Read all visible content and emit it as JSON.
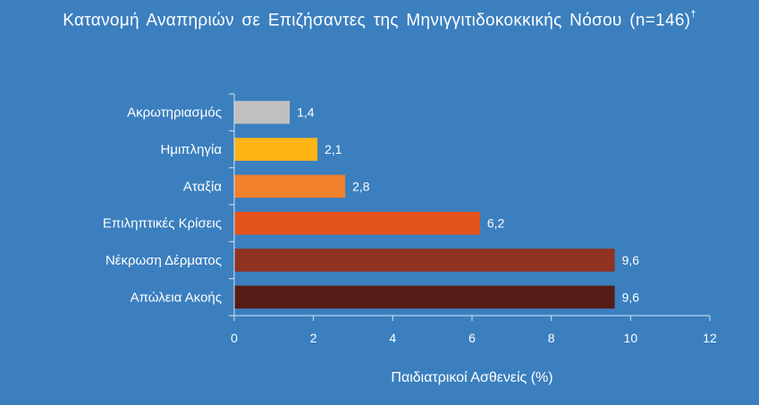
{
  "chart_data": {
    "type": "bar",
    "orientation": "horizontal",
    "title": "Κατανομή Αναπηριών σε Επιζήσαντες της Μηνιγγιτιδοκοκκικής Νόσου (n=146)",
    "title_mark": "†",
    "xlabel": "Παιδιατρικοί Ασθενείς (%)",
    "ylabel": "",
    "xlim": [
      0,
      12
    ],
    "x_ticks": [
      "0",
      "2",
      "4",
      "6",
      "8",
      "10",
      "12"
    ],
    "grid": false,
    "categories": [
      "Ακρωτηριασμός",
      "Ημιπληγία",
      "Αταξία",
      "Επιληπτικές Κρίσεις",
      "Νέκρωση Δέρματος",
      "Απώλεια Ακοής"
    ],
    "values": [
      1.4,
      2.1,
      2.8,
      6.2,
      9.6,
      9.6
    ],
    "value_labels": [
      "1,4",
      "2,1",
      "2,8",
      "6,2",
      "9,6",
      "9,6"
    ],
    "colors": [
      "#c0c0c0",
      "#fdb515",
      "#f0812a",
      "#e4531a",
      "#8f3222",
      "#551c16"
    ],
    "axis_color": "#d7e3f1"
  }
}
